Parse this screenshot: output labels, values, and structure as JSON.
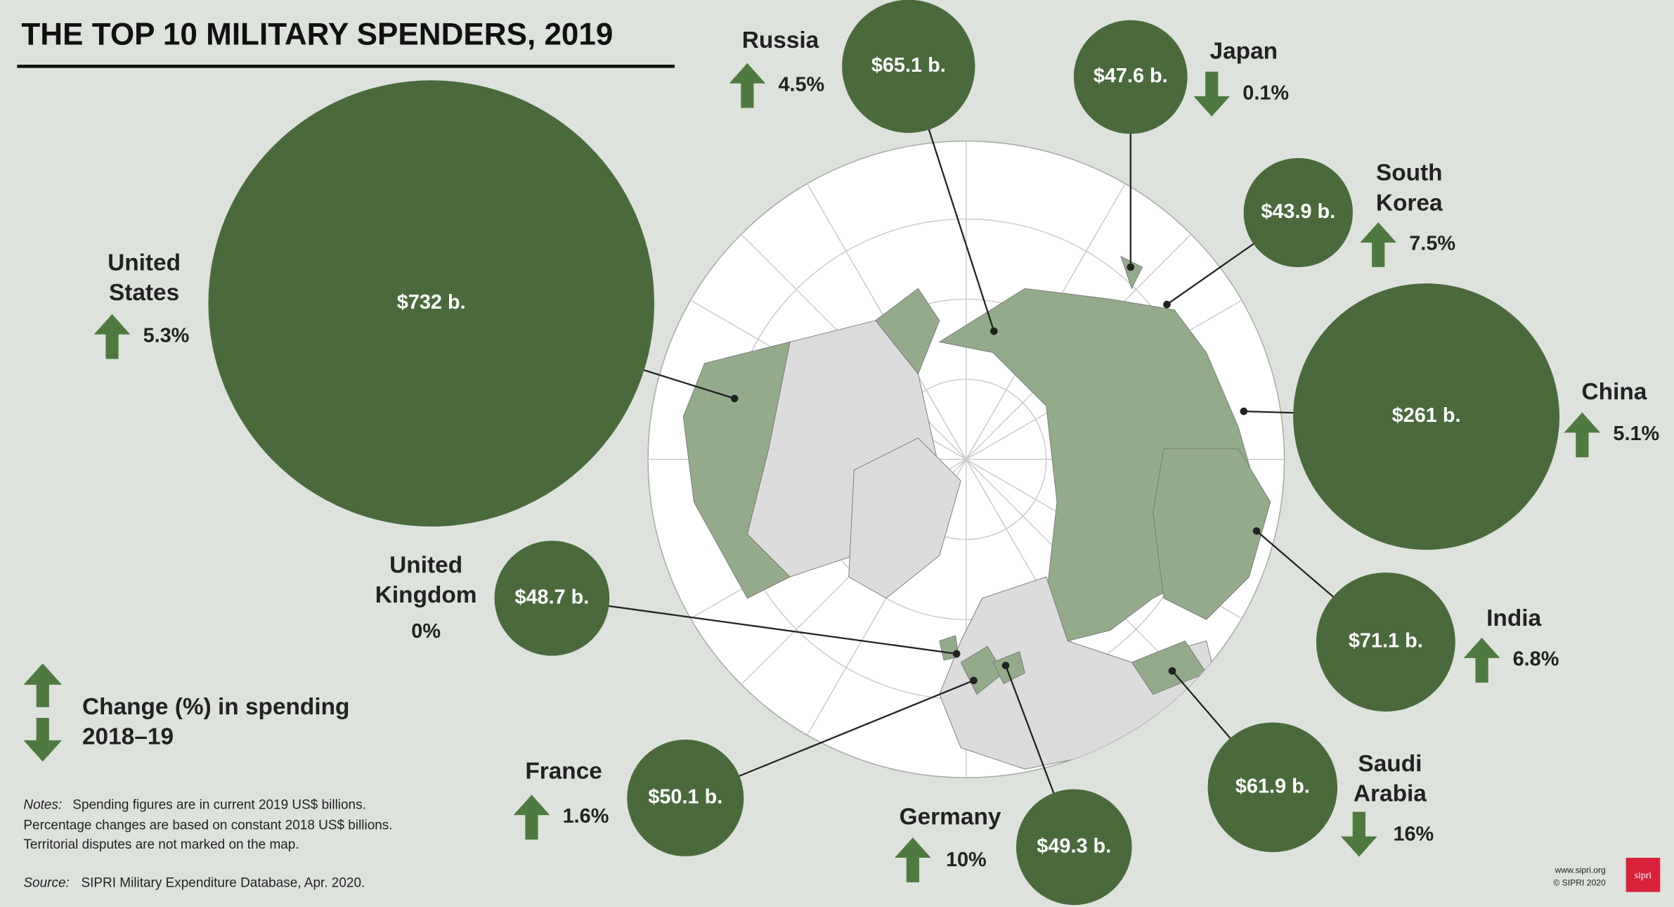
{
  "chart_data": {
    "type": "bubble",
    "title": "THE TOP 10 MILITARY SPENDERS, 2019",
    "categories": [
      "United States",
      "United Kingdom",
      "France",
      "Germany",
      "Saudi Arabia",
      "India",
      "China",
      "South Korea",
      "Japan",
      "Russia"
    ],
    "values": [
      732,
      48.7,
      50.1,
      49.3,
      61.9,
      71.1,
      261,
      43.9,
      47.6,
      65.1
    ],
    "value_labels": [
      "$732 b.",
      "$48.7 b.",
      "$50.1 b.",
      "$49.3 b.",
      "$61.9 b.",
      "$71.1 b.",
      "$261 b.",
      "$43.9 b.",
      "$47.6 b.",
      "$65.1 b."
    ],
    "color": "#4a6a3c",
    "change": {
      "values": [
        5.3,
        0,
        1.6,
        10,
        16,
        6.8,
        5.1,
        7.5,
        0.1,
        4.5
      ],
      "value_labels": [
        "5.3%",
        "0%",
        "1.6%",
        "10%",
        "16%",
        "6.8%",
        "5.1%",
        "7.5%",
        "0.1%",
        "4.5%"
      ],
      "directions": [
        "up",
        "none",
        "up",
        "up",
        "down",
        "up",
        "up",
        "up",
        "down",
        "up"
      ],
      "color": "#4f7a3f"
    },
    "legend": [
      "Change (%) in spending",
      "2018–19"
    ],
    "notes": {
      "label": "Notes:",
      "lines": [
        "Spending figures are in current 2019 US$ billions.",
        "Percentage changes are based on constant 2018 US$ billions.",
        "Territorial disputes are not marked on the map."
      ]
    },
    "source": {
      "label": "Source:",
      "text": "SIPRI Military Expenditure Database, Apr. 2020."
    },
    "footer": [
      "www.sipri.org",
      "© SIPRI 2020"
    ],
    "logo": "sipri"
  }
}
